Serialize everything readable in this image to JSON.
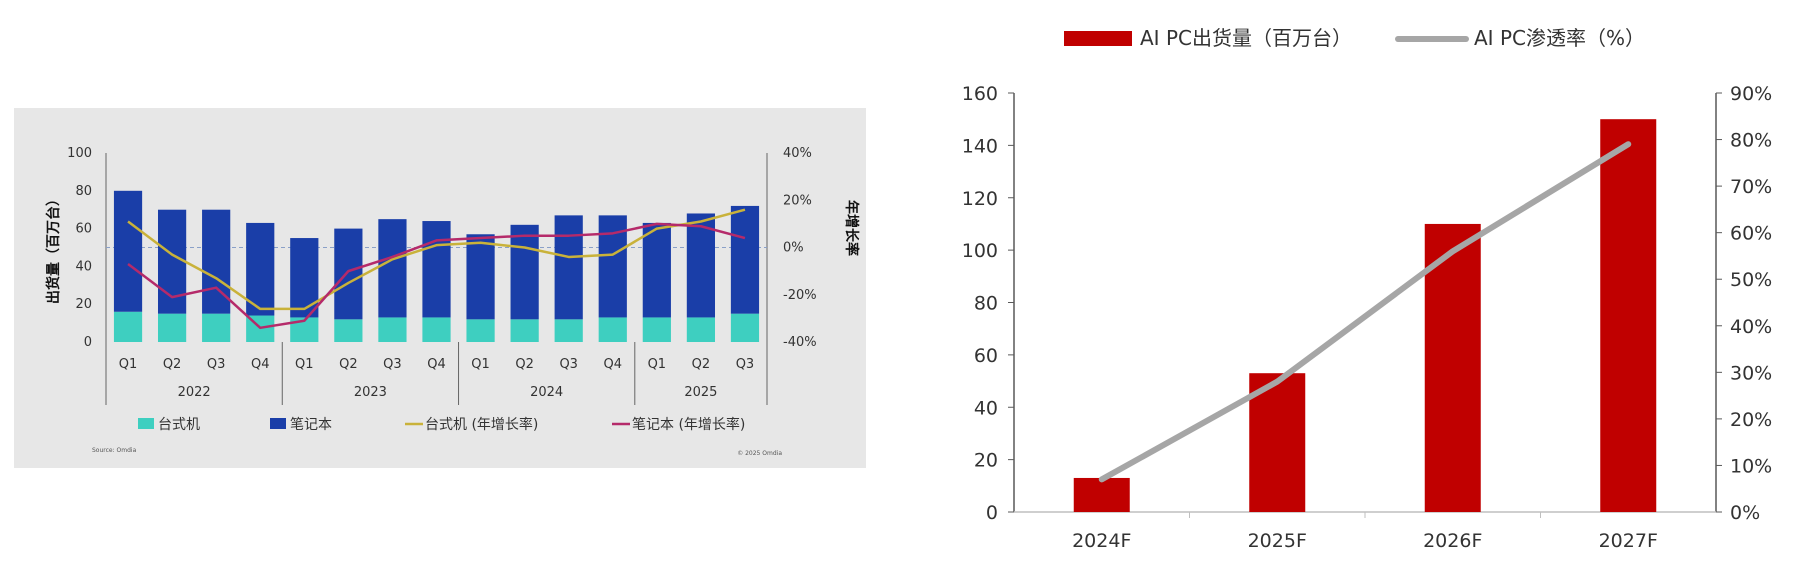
{
  "chart_data": [
    {
      "type": "bar",
      "stacked": true,
      "x_tick_labels": [
        "Q1",
        "Q2",
        "Q3",
        "Q4",
        "Q1",
        "Q2",
        "Q3",
        "Q4",
        "Q1",
        "Q2",
        "Q3",
        "Q4",
        "Q1",
        "Q2",
        "Q3"
      ],
      "years": [
        {
          "label": "2022",
          "count": 4
        },
        {
          "label": "2023",
          "count": 4
        },
        {
          "label": "2024",
          "count": 4
        },
        {
          "label": "2025",
          "count": 3
        }
      ],
      "ylabel": "出货量（百万台）",
      "y2label": "年增长率",
      "ylim": [
        0,
        100
      ],
      "y_ticks": [
        "0",
        "20",
        "40",
        "60",
        "80",
        "100"
      ],
      "y2lim": [
        -40,
        40
      ],
      "y2_ticks": [
        "-40%",
        "-20%",
        "0%",
        "20%",
        "40%"
      ],
      "bar_series": [
        {
          "name": "台式机",
          "color": "#3ecfc0",
          "values": [
            16,
            15,
            15,
            14,
            13,
            12,
            13,
            13,
            12,
            12,
            12,
            13,
            13,
            13,
            15
          ]
        },
        {
          "name": "笔记本",
          "color": "#1a3ea8",
          "values": [
            64,
            55,
            55,
            49,
            42,
            48,
            52,
            51,
            45,
            50,
            55,
            54,
            50,
            55,
            57
          ]
        }
      ],
      "line_series": [
        {
          "name": "台式机 (年增长率)",
          "color": "#c9b23a",
          "axis": "right",
          "values": [
            11,
            -3,
            -13,
            -26,
            -26,
            -15,
            -5,
            1,
            2,
            0,
            -4,
            -3,
            8,
            11,
            16
          ]
        },
        {
          "name": "笔记本 (年增长率)",
          "color": "#b52a6a",
          "axis": "right",
          "values": [
            -7,
            -21,
            -17,
            -34,
            -31,
            -10,
            -4,
            3,
            4,
            5,
            5,
            6,
            10,
            9,
            4
          ]
        }
      ],
      "legend": [
        "台式机",
        "笔记本",
        "台式机 (年增长率)",
        "笔记本 (年增长率)"
      ],
      "legend_position": "bottom",
      "source_text": "Source: Omdia",
      "copyright_text": "© 2025 Omdia",
      "grid": false
    },
    {
      "type": "bar",
      "categories": [
        "2024F",
        "2025F",
        "2026F",
        "2027F"
      ],
      "series": [
        {
          "name": "AI PC出货量（百万台）",
          "type": "bar",
          "color": "#c00000",
          "axis": "left",
          "values": [
            13,
            53,
            110,
            150
          ]
        },
        {
          "name": "AI PC渗透率（%）",
          "type": "line",
          "color": "#a6a6a6",
          "axis": "right",
          "values": [
            7,
            28,
            56,
            79
          ]
        }
      ],
      "ylim": [
        0,
        160
      ],
      "y_ticks": [
        "0",
        "20",
        "40",
        "60",
        "80",
        "100",
        "120",
        "140",
        "160"
      ],
      "y2lim": [
        0,
        90
      ],
      "y2_ticks": [
        "0%",
        "10%",
        "20%",
        "30%",
        "40%",
        "50%",
        "60%",
        "70%",
        "80%",
        "90%"
      ],
      "legend_position": "top",
      "grid": false
    }
  ]
}
